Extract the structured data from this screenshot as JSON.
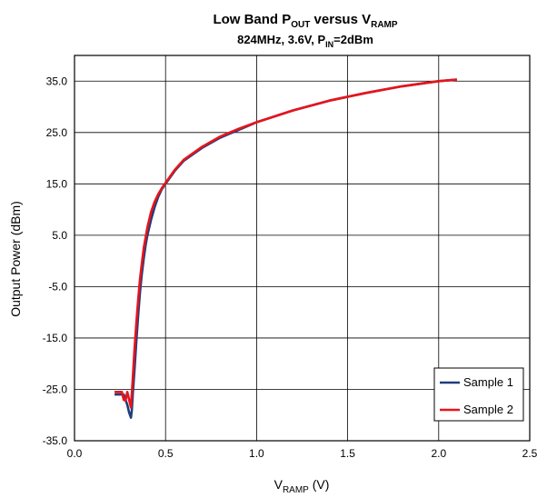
{
  "chart_data": {
    "type": "line",
    "title": {
      "prefix": "Low Band P",
      "sub1": "OUT",
      "middle": " versus V",
      "sub2": "RAMP"
    },
    "subtitle": {
      "prefix": "824MHz, 3.6V, P",
      "sub": "IN",
      "suffix": "=2dBm"
    },
    "xlabel": {
      "prefix": "V",
      "sub": "RAMP",
      "suffix": "  (V)"
    },
    "ylabel": "Output Power (dBm)",
    "xlim": [
      0.0,
      2.5
    ],
    "ylim": [
      -35.0,
      40.0
    ],
    "x_ticks": [
      0.0,
      0.5,
      1.0,
      1.5,
      2.0,
      2.5
    ],
    "x_tick_labels": [
      "0.0",
      "0.5",
      "1.0",
      "1.5",
      "2.0",
      "2.5"
    ],
    "y_ticks": [
      -35,
      -25,
      -15,
      -5,
      5,
      15,
      25,
      35
    ],
    "y_tick_labels": [
      "-35.0",
      "-25.0",
      "-15.0",
      "-5.0",
      "5.0",
      "15.0",
      "25.0",
      "35.0"
    ],
    "grid": true,
    "legend_position": "bottom-right",
    "series": [
      {
        "name": "Sample 1",
        "color": "#1f3d7a",
        "x": [
          0.22,
          0.25,
          0.27,
          0.29,
          0.3,
          0.31,
          0.315,
          0.32,
          0.33,
          0.34,
          0.35,
          0.36,
          0.37,
          0.38,
          0.39,
          0.4,
          0.42,
          0.44,
          0.46,
          0.48,
          0.5,
          0.55,
          0.6,
          0.7,
          0.8,
          0.9,
          1.0,
          1.2,
          1.4,
          1.6,
          1.8,
          2.0,
          2.1
        ],
        "y": [
          -26.0,
          -26.0,
          -26.0,
          -28.0,
          -29.5,
          -30.5,
          -29.0,
          -26.0,
          -21.0,
          -15.5,
          -10.5,
          -6.0,
          -2.5,
          0.5,
          3.0,
          5.0,
          8.0,
          10.5,
          12.5,
          14.0,
          15.0,
          17.5,
          19.5,
          22.0,
          24.0,
          25.5,
          27.0,
          29.3,
          31.2,
          32.7,
          34.0,
          35.0,
          35.3
        ]
      },
      {
        "name": "Sample 2",
        "color": "#e8141b",
        "x": [
          0.22,
          0.25,
          0.26,
          0.27,
          0.28,
          0.29,
          0.3,
          0.31,
          0.32,
          0.33,
          0.34,
          0.35,
          0.36,
          0.37,
          0.38,
          0.39,
          0.4,
          0.42,
          0.44,
          0.46,
          0.48,
          0.5,
          0.55,
          0.6,
          0.7,
          0.8,
          0.9,
          1.0,
          1.2,
          1.4,
          1.6,
          1.8,
          2.0,
          2.1
        ],
        "y": [
          -25.5,
          -25.5,
          -25.5,
          -27.0,
          -27.2,
          -25.5,
          -27.0,
          -28.5,
          -23.0,
          -17.0,
          -12.0,
          -7.5,
          -3.5,
          -0.5,
          2.5,
          4.5,
          6.5,
          9.5,
          11.5,
          13.0,
          14.2,
          15.2,
          17.7,
          19.7,
          22.2,
          24.2,
          25.7,
          27.0,
          29.3,
          31.2,
          32.7,
          34.0,
          35.0,
          35.3
        ]
      }
    ]
  }
}
